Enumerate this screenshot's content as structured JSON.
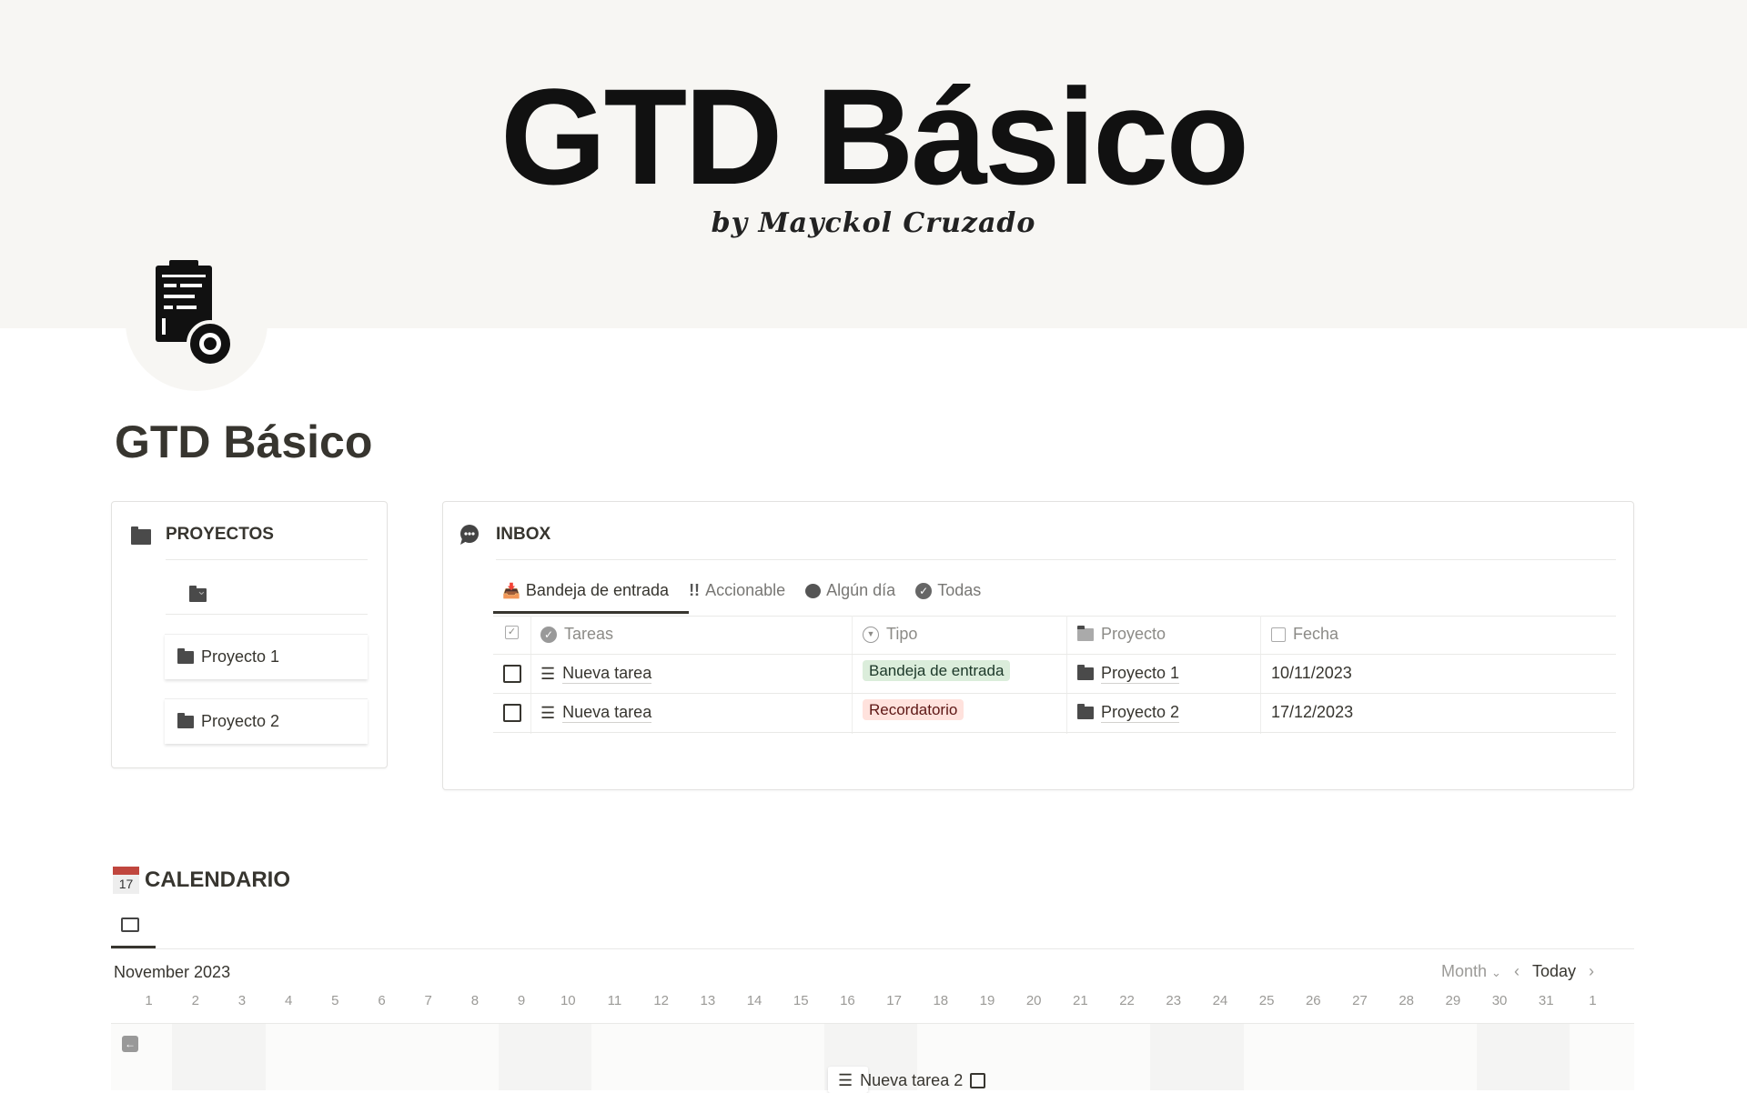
{
  "cover": {
    "title": "GTD Básico",
    "subtitle": "by Mayckol Cruzado"
  },
  "page": {
    "icon": "clipboard-gear-icon",
    "title": "GTD Básico"
  },
  "proyectos": {
    "title": "PROYECTOS",
    "icon": "folder-icon",
    "items": [
      {
        "label": "Proyecto 1"
      },
      {
        "label": "Proyecto 2"
      }
    ]
  },
  "inbox": {
    "title": "INBOX",
    "icon": "speech-bubble-icon",
    "tabs": [
      {
        "label": "Bandeja de entrada",
        "icon": "inbox-tray-icon",
        "active": true
      },
      {
        "label": "Accionable",
        "icon": "double-exclamation-icon"
      },
      {
        "label": "Algún día",
        "icon": "speech-balloon-icon"
      },
      {
        "label": "Todas",
        "icon": "check-circle-icon"
      }
    ],
    "columns": [
      "Tareas",
      "Tipo",
      "Proyecto",
      "Fecha"
    ],
    "rows": [
      {
        "done": false,
        "task": "Nueva tarea",
        "tipo": "Bandeja de entrada",
        "tipo_color": "#dbeddb",
        "proyecto": "Proyecto 1",
        "fecha": "10/11/2023"
      },
      {
        "done": false,
        "task": "Nueva tarea",
        "tipo": "Recordatorio",
        "tipo_color": "#ffe2dd",
        "proyecto": "Proyecto 2",
        "fecha": "17/12/2023"
      }
    ]
  },
  "calendar": {
    "title": "CALENDARIO",
    "icon": "calendar-17-icon",
    "month": "November 2023",
    "view": "Month",
    "today": "Today",
    "days": [
      "1",
      "2",
      "3",
      "4",
      "5",
      "6",
      "7",
      "8",
      "9",
      "10",
      "11",
      "12",
      "13",
      "14",
      "15",
      "16",
      "17",
      "18",
      "19",
      "20",
      "21",
      "22",
      "23",
      "24",
      "25",
      "26",
      "27",
      "28",
      "29",
      "30",
      "31",
      "1"
    ],
    "event": {
      "label": "Nueva tarea 2",
      "done": false
    }
  }
}
